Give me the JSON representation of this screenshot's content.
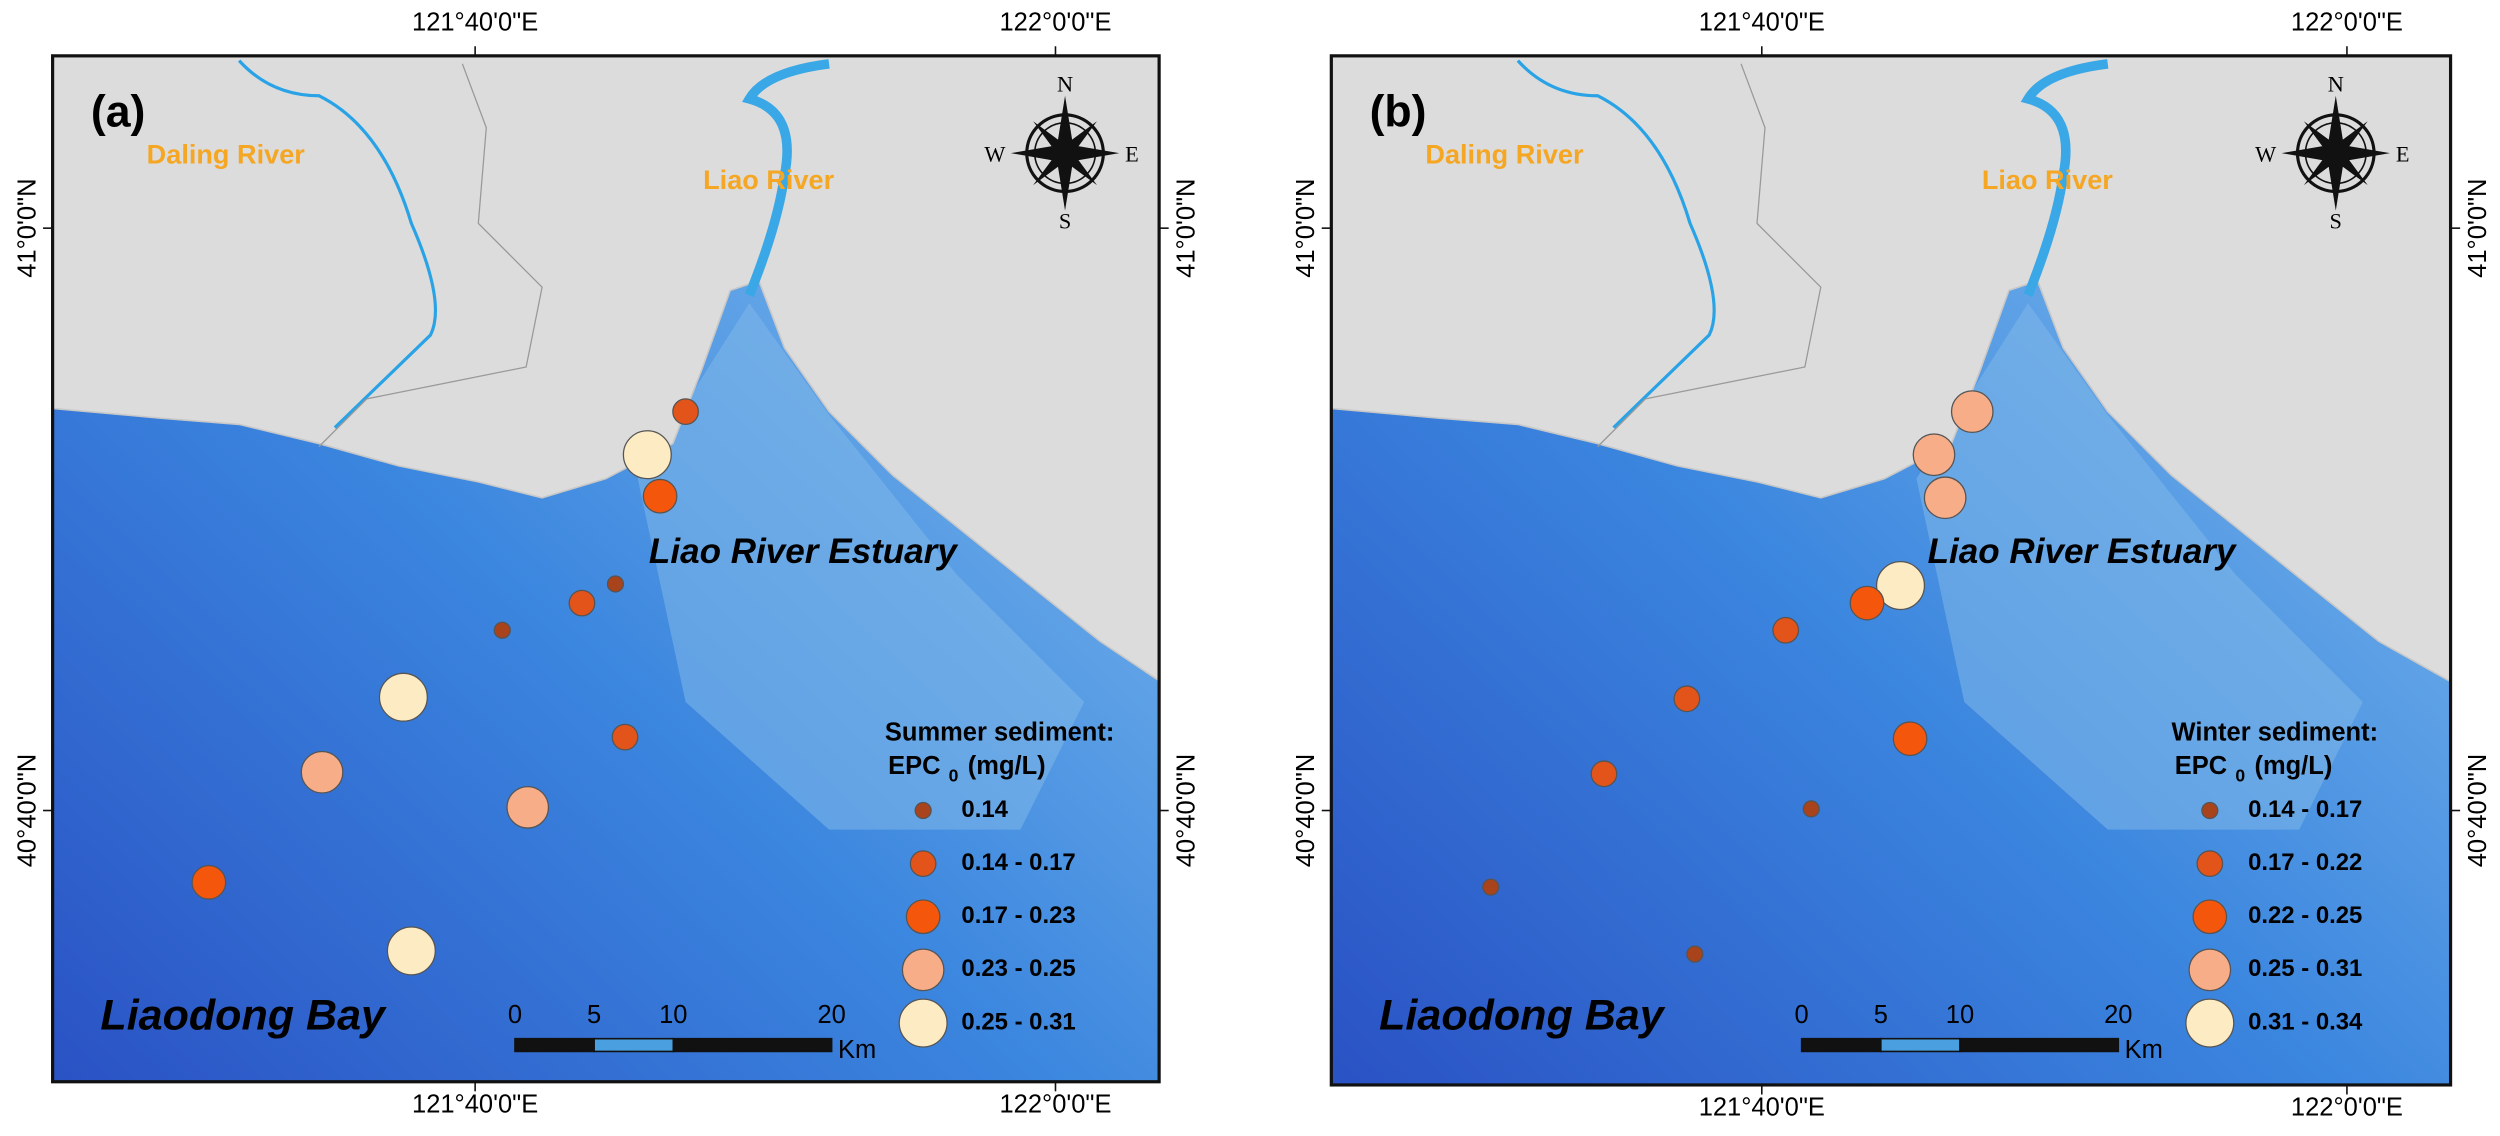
{
  "panels": [
    {
      "label": "(a)",
      "rivers": [
        "Daling River",
        "Liao River"
      ],
      "estuary": "Liao River Estuary",
      "bay": "Liaodong Bay",
      "legend": {
        "title": "Summer sediment:",
        "quantity": "EPC",
        "subscript": "0",
        "unit": "(mg/L)",
        "classes": [
          "0.14",
          "0.14 - 0.17",
          "0.17 - 0.23",
          "0.23 - 0.25",
          "0.25 - 0.31"
        ]
      },
      "scale": {
        "ticks": [
          0,
          5,
          10,
          20
        ],
        "unit": "Km"
      },
      "compass": {
        "n": "N",
        "s": "S",
        "w": "W",
        "e": "E"
      },
      "lon_labels": [
        "121°40'0\"E",
        "122°0'0\"E"
      ],
      "lat_labels": [
        "41°0'0\"N",
        "40°40'0\"N"
      ]
    },
    {
      "label": "(b)",
      "rivers": [
        "Daling River",
        "Liao River"
      ],
      "estuary": "Liao River Estuary",
      "bay": "Liaodong Bay",
      "legend": {
        "title": "Winter sediment:",
        "quantity": "EPC",
        "subscript": "0",
        "unit": "(mg/L)",
        "classes": [
          "0.14 - 0.17",
          "0.17 - 0.22",
          "0.22 - 0.25",
          "0.25 - 0.31",
          "0.31 - 0.34"
        ]
      },
      "scale": {
        "ticks": [
          0,
          5,
          10,
          20
        ],
        "unit": "Km"
      },
      "compass": {
        "n": "N",
        "s": "S",
        "w": "W",
        "e": "E"
      },
      "lon_labels": [
        "121°40'0\"E",
        "122°0'0\"E"
      ],
      "lat_labels": [
        "41°0'0\"N",
        "40°40'0\"N"
      ]
    }
  ]
}
